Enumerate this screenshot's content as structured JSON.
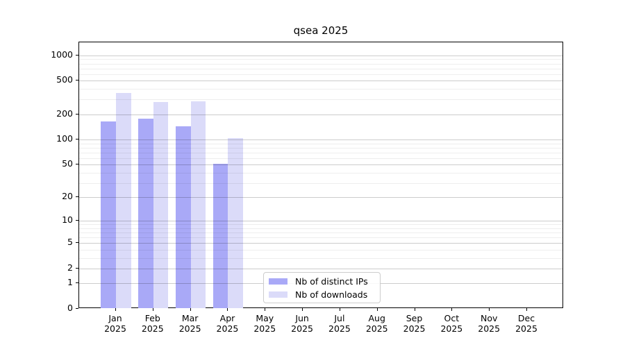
{
  "title": "qsea 2025",
  "legend": {
    "items": [
      {
        "label": "Nb of distinct IPs",
        "color": "#a9a9f7"
      },
      {
        "label": "Nb of downloads",
        "color": "#dbdbf9"
      }
    ]
  },
  "chart_data": {
    "type": "bar",
    "title": "qsea 2025",
    "y_scale": "log1p",
    "ylim": [
      0,
      1430
    ],
    "yticks": [
      0,
      1,
      2,
      5,
      10,
      20,
      50,
      100,
      200,
      500,
      1000
    ],
    "minor_yticks": [
      3,
      4,
      6,
      7,
      8,
      9,
      30,
      40,
      60,
      70,
      80,
      90,
      300,
      400,
      600,
      700,
      800,
      900
    ],
    "categories": [
      "Jan 2025",
      "Feb 2025",
      "Mar 2025",
      "Apr 2025",
      "May 2025",
      "Jun 2025",
      "Jul 2025",
      "Aug 2025",
      "Sep 2025",
      "Oct 2025",
      "Nov 2025",
      "Dec 2025"
    ],
    "series": [
      {
        "name": "Nb of distinct IPs",
        "color": "#a9a9f7",
        "values": [
          165,
          177,
          143,
          51,
          null,
          null,
          null,
          null,
          null,
          null,
          null,
          null
        ]
      },
      {
        "name": "Nb of downloads",
        "color": "#dbdbf9",
        "values": [
          359,
          281,
          287,
          105,
          null,
          null,
          null,
          null,
          null,
          null,
          null,
          null
        ]
      }
    ],
    "grid": "both",
    "legend_position": "lower center"
  }
}
